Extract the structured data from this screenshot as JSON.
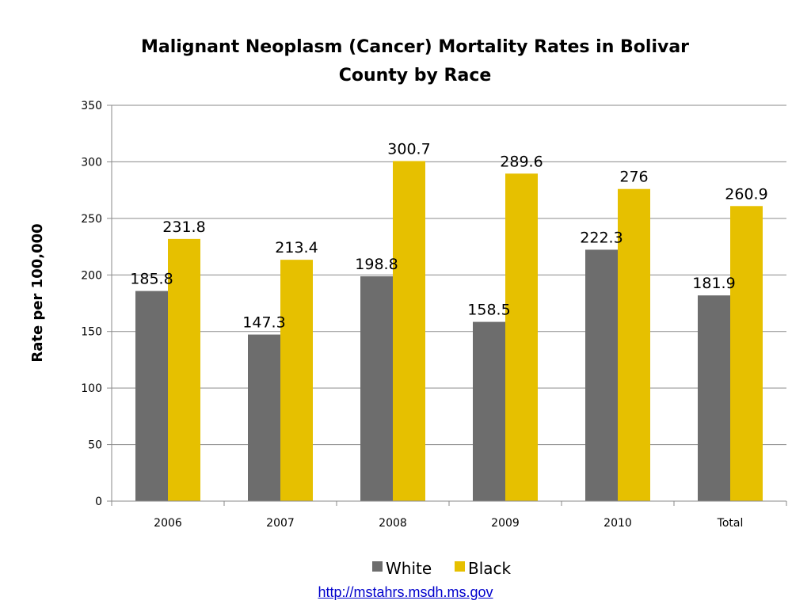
{
  "chart_data": {
    "type": "bar",
    "title_lines": [
      "Malignant Neoplasm (Cancer) Mortality Rates in Bolivar",
      "County by Race"
    ],
    "xlabel": "",
    "ylabel": "Rate per 100,000",
    "categories": [
      "2006",
      "2007",
      "2008",
      "2009",
      "2010",
      "Total"
    ],
    "series": [
      {
        "name": "White",
        "values": [
          185.8,
          147.3,
          198.8,
          158.5,
          222.3,
          181.9
        ],
        "labels": [
          "185.8",
          "147.3",
          "198.8",
          "158.5",
          "222.3",
          "181.9"
        ],
        "color": "#6d6d6d"
      },
      {
        "name": "Black",
        "values": [
          231.8,
          213.4,
          300.7,
          289.6,
          276,
          260.9
        ],
        "labels": [
          "231.8",
          "213.4",
          "300.7",
          "289.6",
          "276",
          "260.9"
        ],
        "color": "#e6c000"
      }
    ],
    "ylim": [
      0,
      350
    ],
    "yticks": [
      "0",
      "50",
      "100",
      "150",
      "200",
      "250",
      "300",
      "350"
    ],
    "grid": true,
    "legend_position": "bottom-center"
  },
  "source": {
    "url_text": "http://mstahrs.msdh.ms.gov"
  }
}
